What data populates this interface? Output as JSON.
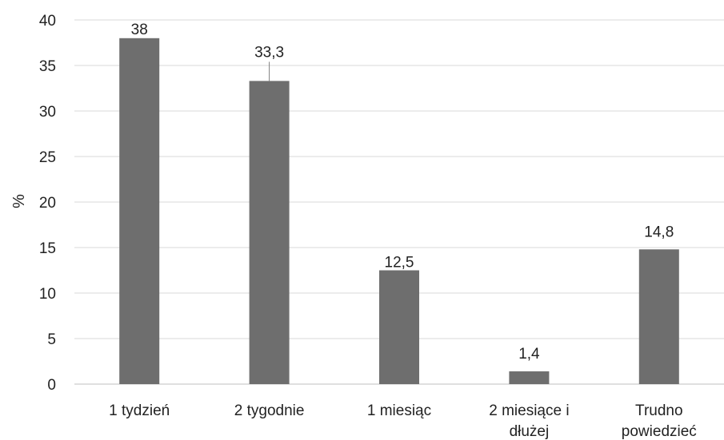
{
  "chart_data": {
    "type": "bar",
    "categories": [
      [
        "1 tydzień"
      ],
      [
        "2 tygodnie"
      ],
      [
        "1 miesiąc"
      ],
      [
        "2 miesiące i",
        "dłużej"
      ],
      [
        "Trudno",
        "powiedzieć"
      ]
    ],
    "values": [
      38,
      33.3,
      12.5,
      1.4,
      14.8
    ],
    "data_labels": [
      "38",
      "33,3",
      "12,5",
      "1,4",
      "14,8"
    ],
    "title": "",
    "xlabel": "",
    "ylabel": "%",
    "ylim": [
      0,
      40
    ],
    "yticks": [
      0,
      5,
      10,
      15,
      20,
      25,
      30,
      35,
      40
    ],
    "grid": true,
    "legend": "none",
    "colors": {
      "bar": "#6e6e6e"
    }
  }
}
